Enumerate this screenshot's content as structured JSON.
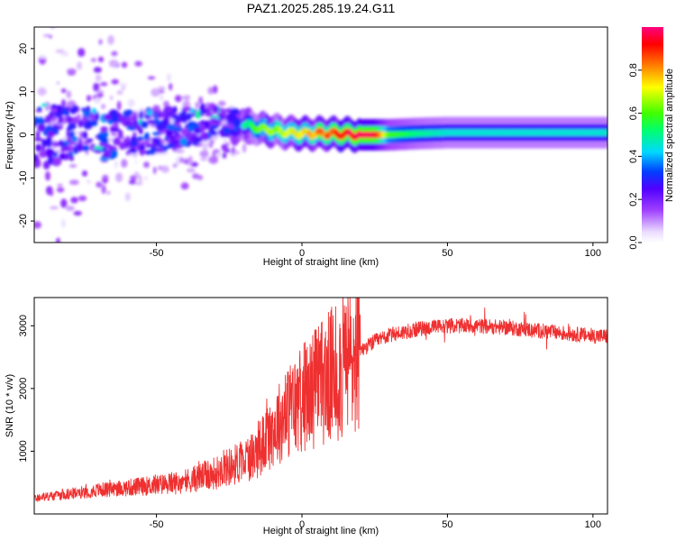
{
  "title": "PAZ1.2025.285.19.24.G11",
  "chart_data": [
    {
      "type": "heatmap",
      "title": "PAZ1.2025.285.19.24.G11",
      "xlabel": "Height of straight line (km)",
      "ylabel": "Frequency (Hz)",
      "xlim": [
        -92,
        105
      ],
      "ylim": [
        -25,
        25
      ],
      "xticks": [
        -50,
        0,
        50,
        100
      ],
      "yticks": [
        -20,
        -10,
        0,
        10,
        20
      ],
      "colorbar": {
        "label": "Normalized spectral amplitude",
        "range": [
          0,
          1
        ],
        "ticks": [
          0.0,
          0.2,
          0.4,
          0.6,
          0.8
        ],
        "tick_labels": [
          "0.0",
          "0.2",
          "0.4",
          "0.6",
          "0.8"
        ]
      },
      "ridge": {
        "x": [
          -92,
          -60,
          -40,
          -30,
          -20,
          -15,
          -10,
          -5,
          0,
          10,
          20,
          25,
          30,
          40,
          50,
          60,
          80,
          105
        ],
        "y": [
          0,
          0,
          2,
          3,
          2.5,
          1.5,
          1,
          0.5,
          0.3,
          0.3,
          0,
          0,
          0,
          0.3,
          0.5,
          0.5,
          0.5,
          0.5
        ],
        "amplitude": [
          0.25,
          0.3,
          0.35,
          0.4,
          0.45,
          0.6,
          0.65,
          0.7,
          0.72,
          0.85,
          0.98,
          0.97,
          0.6,
          0.5,
          0.45,
          0.45,
          0.45,
          0.45
        ]
      }
    },
    {
      "type": "line",
      "xlabel": "Height of straight line (km)",
      "ylabel": "SNR (10 * v/v)",
      "xlim": [
        -92,
        105
      ],
      "ylim": [
        0,
        3450
      ],
      "xticks": [
        -50,
        0,
        50,
        100
      ],
      "yticks": [
        1000,
        2000,
        3000
      ],
      "series": [
        {
          "name": "SNR",
          "color": "#ef3030",
          "x": [
            -92,
            -80,
            -70,
            -60,
            -50,
            -40,
            -30,
            -20,
            -15,
            -10,
            -5,
            0,
            5,
            10,
            15,
            20,
            25,
            30,
            35,
            40,
            50,
            60,
            70,
            80,
            90,
            100,
            105
          ],
          "y": [
            250,
            320,
            380,
            420,
            460,
            520,
            650,
            850,
            1000,
            1350,
            1600,
            1850,
            2050,
            2200,
            2350,
            2600,
            2750,
            2850,
            2900,
            2950,
            3000,
            3000,
            2970,
            2930,
            2880,
            2840,
            2830
          ]
        }
      ]
    }
  ]
}
